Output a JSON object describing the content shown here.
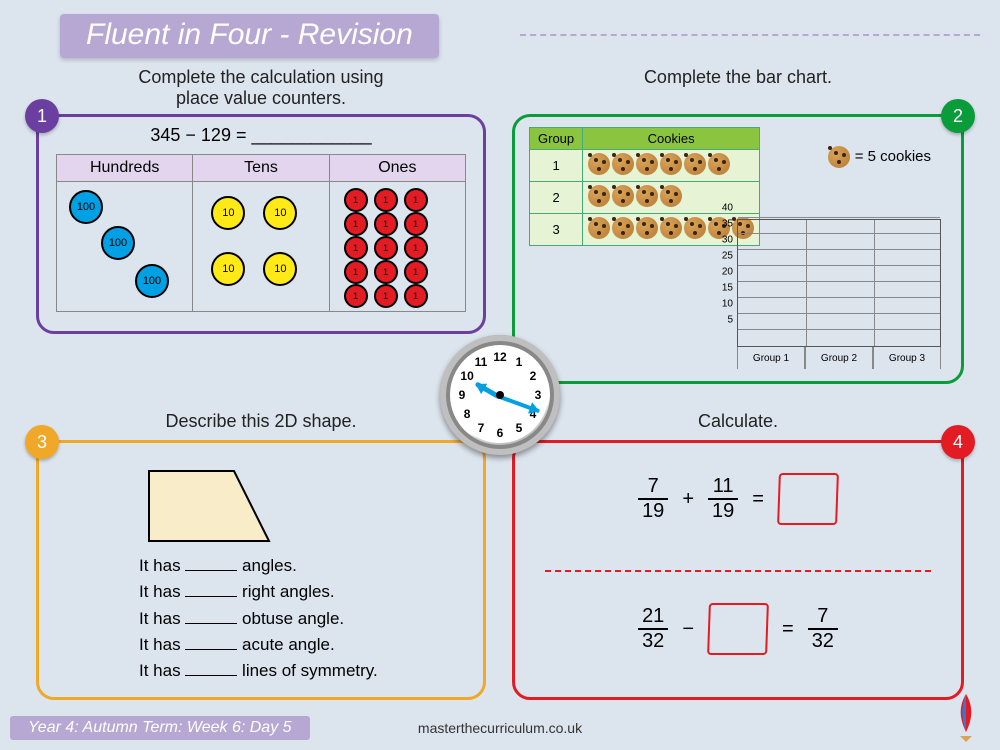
{
  "title": "Fluent in Four - Revision",
  "footer": {
    "label": "Year 4: Autumn Term: Week 6: Day 5",
    "url": "masterthecurriculum.co.uk"
  },
  "panels": {
    "p1": {
      "num": "1",
      "instr": "Complete the calculation using\nplace value counters.",
      "equation": "345 − 129 = ____________",
      "headers": [
        "Hundreds",
        "Tens",
        "Ones"
      ],
      "hundreds_count": 3,
      "tens_count": 4,
      "ones_count": 15,
      "colors": {
        "hundreds": "#00a0e4",
        "tens": "#ffe916",
        "ones": "#e31b23",
        "header_bg": "#e4d5ef"
      }
    },
    "p2": {
      "num": "2",
      "instr": "Complete the bar chart.",
      "table_headers": [
        "Group",
        "Cookies"
      ],
      "rows": [
        {
          "group": "1",
          "cookies": 6
        },
        {
          "group": "2",
          "cookies": 4
        },
        {
          "group": "3",
          "cookies": 7
        }
      ],
      "legend": "= 5 cookies",
      "chart": {
        "y_max": 40,
        "y_step": 5,
        "x_labels": [
          "Group 1",
          "Group 2",
          "Group 3"
        ]
      }
    },
    "p3": {
      "num": "3",
      "instr": "Describe this 2D shape.",
      "shape_fill": "#f9ecc8",
      "lines": [
        "It has ______ angles.",
        "It has ______ right angles.",
        "It has ______ obtuse angle.",
        "It has ______ acute angle.",
        "It has ______ lines of symmetry."
      ]
    },
    "p4": {
      "num": "4",
      "instr": "Calculate.",
      "eq1": {
        "a_n": "7",
        "a_d": "19",
        "op": "+",
        "b_n": "11",
        "b_d": "19"
      },
      "eq2": {
        "a_n": "21",
        "a_d": "32",
        "op": "−",
        "r_n": "7",
        "r_d": "32"
      }
    }
  },
  "clock": {
    "numbers": [
      "12",
      "1",
      "2",
      "3",
      "4",
      "5",
      "6",
      "7",
      "8",
      "9",
      "10",
      "11"
    ],
    "hour_angle": 210,
    "minute_angle": 20
  }
}
